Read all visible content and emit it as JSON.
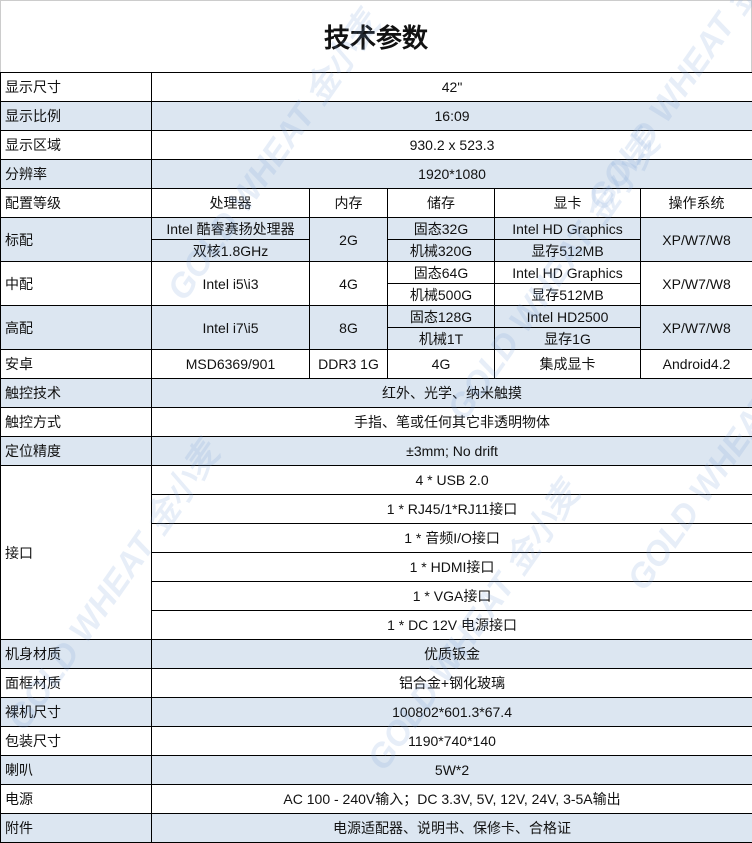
{
  "title": "技术参数",
  "watermark": "GOLD WHEAT 金小麦",
  "colors": {
    "row_alt": "#dce6f1",
    "border": "#000000"
  },
  "top_rows": [
    {
      "label": "显示尺寸",
      "value": "42\""
    },
    {
      "label": "显示比例",
      "value": "16:09"
    },
    {
      "label": "显示区域",
      "value": "930.2 x 523.3"
    },
    {
      "label": "分辨率",
      "value": "1920*1080"
    }
  ],
  "config": {
    "header": {
      "label": "配置等级",
      "cpu": "处理器",
      "ram": "内存",
      "storage": "储存",
      "gpu": "显卡",
      "os": "操作系统"
    },
    "standard": {
      "label": "标配",
      "cpu1": "Intel 酷睿赛扬处理器",
      "cpu2": "双核1.8GHz",
      "ram": "2G",
      "storage1": "固态32G",
      "storage2": "机械320G",
      "gpu1": "Intel HD Graphics",
      "gpu2": "显存512MB",
      "os": "XP/W7/W8"
    },
    "mid": {
      "label": "中配",
      "cpu": "Intel i5\\i3",
      "ram": "4G",
      "storage1": "固态64G",
      "storage2": "机械500G",
      "gpu1": "Intel HD Graphics",
      "gpu2": "显存512MB",
      "os": "XP/W7/W8"
    },
    "high": {
      "label": "高配",
      "cpu": "Intel i7\\i5",
      "ram": "8G",
      "storage1": "固态128G",
      "storage2": "机械1T",
      "gpu1": "Intel HD2500",
      "gpu2": "显存1G",
      "os": "XP/W7/W8"
    },
    "android": {
      "label": "安卓",
      "cpu": "MSD6369/901",
      "ram": "DDR3 1G",
      "storage": "4G",
      "gpu": "集成显卡",
      "os": "Android4.2"
    }
  },
  "touch_rows": [
    {
      "label": "触控技术",
      "value": "红外、光学、纳米触摸"
    },
    {
      "label": "触控方式",
      "value": "手指、笔或任何其它非透明物体"
    },
    {
      "label": "定位精度",
      "value": "±3mm; No drift"
    }
  ],
  "ports": {
    "label": "接口",
    "items": [
      "4 * USB 2.0",
      "1 * RJ45/1*RJ11接口",
      "1 * 音频I/O接口",
      "1 * HDMI接口",
      "1 * VGA接口",
      "1 * DC 12V 电源接口"
    ]
  },
  "bottom_rows": [
    {
      "label": "机身材质",
      "value": "优质钣金"
    },
    {
      "label": "面框材质",
      "value": "铝合金+钢化玻璃"
    },
    {
      "label": "裸机尺寸",
      "value": "100802*601.3*67.4"
    },
    {
      "label": "包装尺寸",
      "value": "1190*740*140"
    },
    {
      "label": "喇叭",
      "value": "5W*2"
    },
    {
      "label": "电源",
      "value": "AC 100 - 240V输入；DC 3.3V, 5V, 12V, 24V, 3-5A输出"
    },
    {
      "label": "附件",
      "value": "电源适配器、说明书、保修卡、合格证"
    }
  ]
}
